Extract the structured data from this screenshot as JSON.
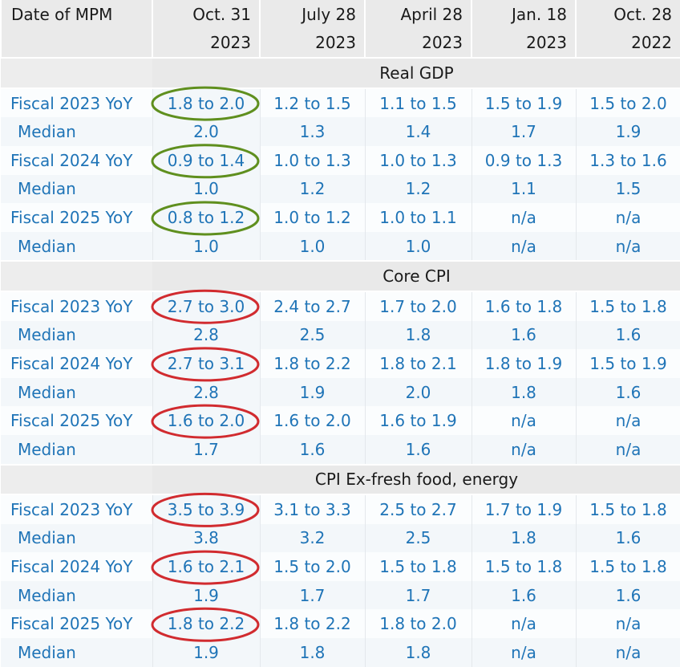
{
  "header": {
    "label": "Date of MPM",
    "dates": [
      "Oct. 31",
      "July 28",
      "April 28",
      "Jan. 18",
      "Oct. 28"
    ],
    "years": [
      "2023",
      "2023",
      "2023",
      "2023",
      "2022"
    ]
  },
  "sections": [
    {
      "title": "Real GDP",
      "highlight_color": "#5f8f1e",
      "rows": [
        {
          "label": "Fiscal 2023 YoY",
          "values": [
            "1.8 to 2.0",
            "1.2 to 1.5",
            "1.1 to 1.5",
            "1.5 to 1.9",
            "1.5 to 2.0"
          ]
        },
        {
          "label": "Median",
          "values": [
            "2.0",
            "1.3",
            "1.4",
            "1.7",
            "1.9"
          ]
        },
        {
          "label": "Fiscal 2024 YoY",
          "values": [
            "0.9 to 1.4",
            "1.0 to 1.3",
            "1.0 to 1.3",
            "0.9 to 1.3",
            "1.3 to 1.6"
          ]
        },
        {
          "label": "Median",
          "values": [
            "1.0",
            "1.2",
            "1.2",
            "1.1",
            "1.5"
          ]
        },
        {
          "label": "Fiscal 2025 YoY",
          "values": [
            "0.8 to 1.2",
            "1.0 to 1.2",
            "1.0 to 1.1",
            "n/a",
            "n/a"
          ]
        },
        {
          "label": "Median",
          "values": [
            "1.0",
            "1.0",
            "1.0",
            "n/a",
            "n/a"
          ]
        }
      ]
    },
    {
      "title": "Core CPI",
      "highlight_color": "#d12b2f",
      "rows": [
        {
          "label": "Fiscal 2023 YoY",
          "values": [
            "2.7 to 3.0",
            "2.4 to 2.7",
            "1.7 to 2.0",
            "1.6 to 1.8",
            "1.5 to 1.8"
          ]
        },
        {
          "label": "Median",
          "values": [
            "2.8",
            "2.5",
            "1.8",
            "1.6",
            "1.6"
          ]
        },
        {
          "label": "Fiscal 2024 YoY",
          "values": [
            "2.7 to 3.1",
            "1.8 to 2.2",
            "1.8 to 2.1",
            "1.8 to 1.9",
            "1.5 to 1.9"
          ]
        },
        {
          "label": "Median",
          "values": [
            "2.8",
            "1.9",
            "2.0",
            "1.8",
            "1.6"
          ]
        },
        {
          "label": "Fiscal 2025 YoY",
          "values": [
            "1.6 to 2.0",
            "1.6 to 2.0",
            "1.6 to 1.9",
            "n/a",
            "n/a"
          ]
        },
        {
          "label": "Median",
          "values": [
            "1.7",
            "1.6",
            "1.6",
            "n/a",
            "n/a"
          ]
        }
      ]
    },
    {
      "title": "CPI Ex-fresh food, energy",
      "highlight_color": "#d12b2f",
      "rows": [
        {
          "label": "Fiscal 2023 YoY",
          "values": [
            "3.5 to 3.9",
            "3.1 to 3.3",
            "2.5 to 2.7",
            "1.7 to 1.9",
            "1.5 to 1.8"
          ]
        },
        {
          "label": "Median",
          "values": [
            "3.8",
            "3.2",
            "2.5",
            "1.8",
            "1.6"
          ]
        },
        {
          "label": "Fiscal 2024 YoY",
          "values": [
            "1.6 to 2.1",
            "1.5 to 2.0",
            "1.5 to 1.8",
            "1.5 to 1.8",
            "1.5 to 1.8"
          ]
        },
        {
          "label": "Median",
          "values": [
            "1.9",
            "1.7",
            "1.7",
            "1.6",
            "1.6"
          ]
        },
        {
          "label": "Fiscal 2025 YoY",
          "values": [
            "1.8 to 2.2",
            "1.8 to 2.2",
            "1.8 to 2.0",
            "n/a",
            "n/a"
          ]
        },
        {
          "label": "Median",
          "values": [
            "1.9",
            "1.8",
            "1.8",
            "n/a",
            "n/a"
          ]
        }
      ]
    }
  ]
}
